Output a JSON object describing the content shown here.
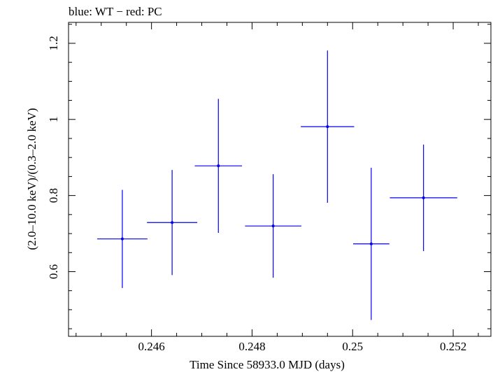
{
  "chart_data": {
    "type": "scatter",
    "title": "blue: WT − red: PC",
    "xlabel": "Time Since 58933.0 MJD (days)",
    "ylabel": "(2.0–10.0 keV)/(0.3–2.0 keV)",
    "xlim": [
      0.24435,
      0.25275
    ],
    "ylim": [
      0.43,
      1.255
    ],
    "x_ticks": [
      0.246,
      0.248,
      0.25,
      0.252
    ],
    "x_tick_labels": [
      "0.246",
      "0.248",
      "0.25",
      "0.252"
    ],
    "y_ticks": [
      0.6,
      0.8,
      1.0,
      1.2
    ],
    "y_tick_labels": [
      "0.6",
      "0.8",
      "1",
      "1.2"
    ],
    "grid": false,
    "series": [
      {
        "color": "#0000ee",
        "points": [
          {
            "x": 0.24542,
            "y": 0.686,
            "xerr": 0.0005,
            "ylo": 0.557,
            "yhi": 0.815
          },
          {
            "x": 0.24641,
            "y": 0.729,
            "xerr": 0.0005,
            "ylo": 0.591,
            "yhi": 0.867
          },
          {
            "x": 0.24733,
            "y": 0.878,
            "xerr": 0.00047,
            "ylo": 0.702,
            "yhi": 1.054
          },
          {
            "x": 0.24842,
            "y": 0.72,
            "xerr": 0.00056,
            "ylo": 0.584,
            "yhi": 0.856
          },
          {
            "x": 0.2495,
            "y": 0.981,
            "xerr": 0.00053,
            "ylo": 0.781,
            "yhi": 1.181
          },
          {
            "x": 0.25037,
            "y": 0.673,
            "xerr": 0.00036,
            "ylo": 0.473,
            "yhi": 0.873
          },
          {
            "x": 0.25141,
            "y": 0.794,
            "xerr": 0.00067,
            "ylo": 0.654,
            "yhi": 0.934
          }
        ]
      }
    ]
  }
}
